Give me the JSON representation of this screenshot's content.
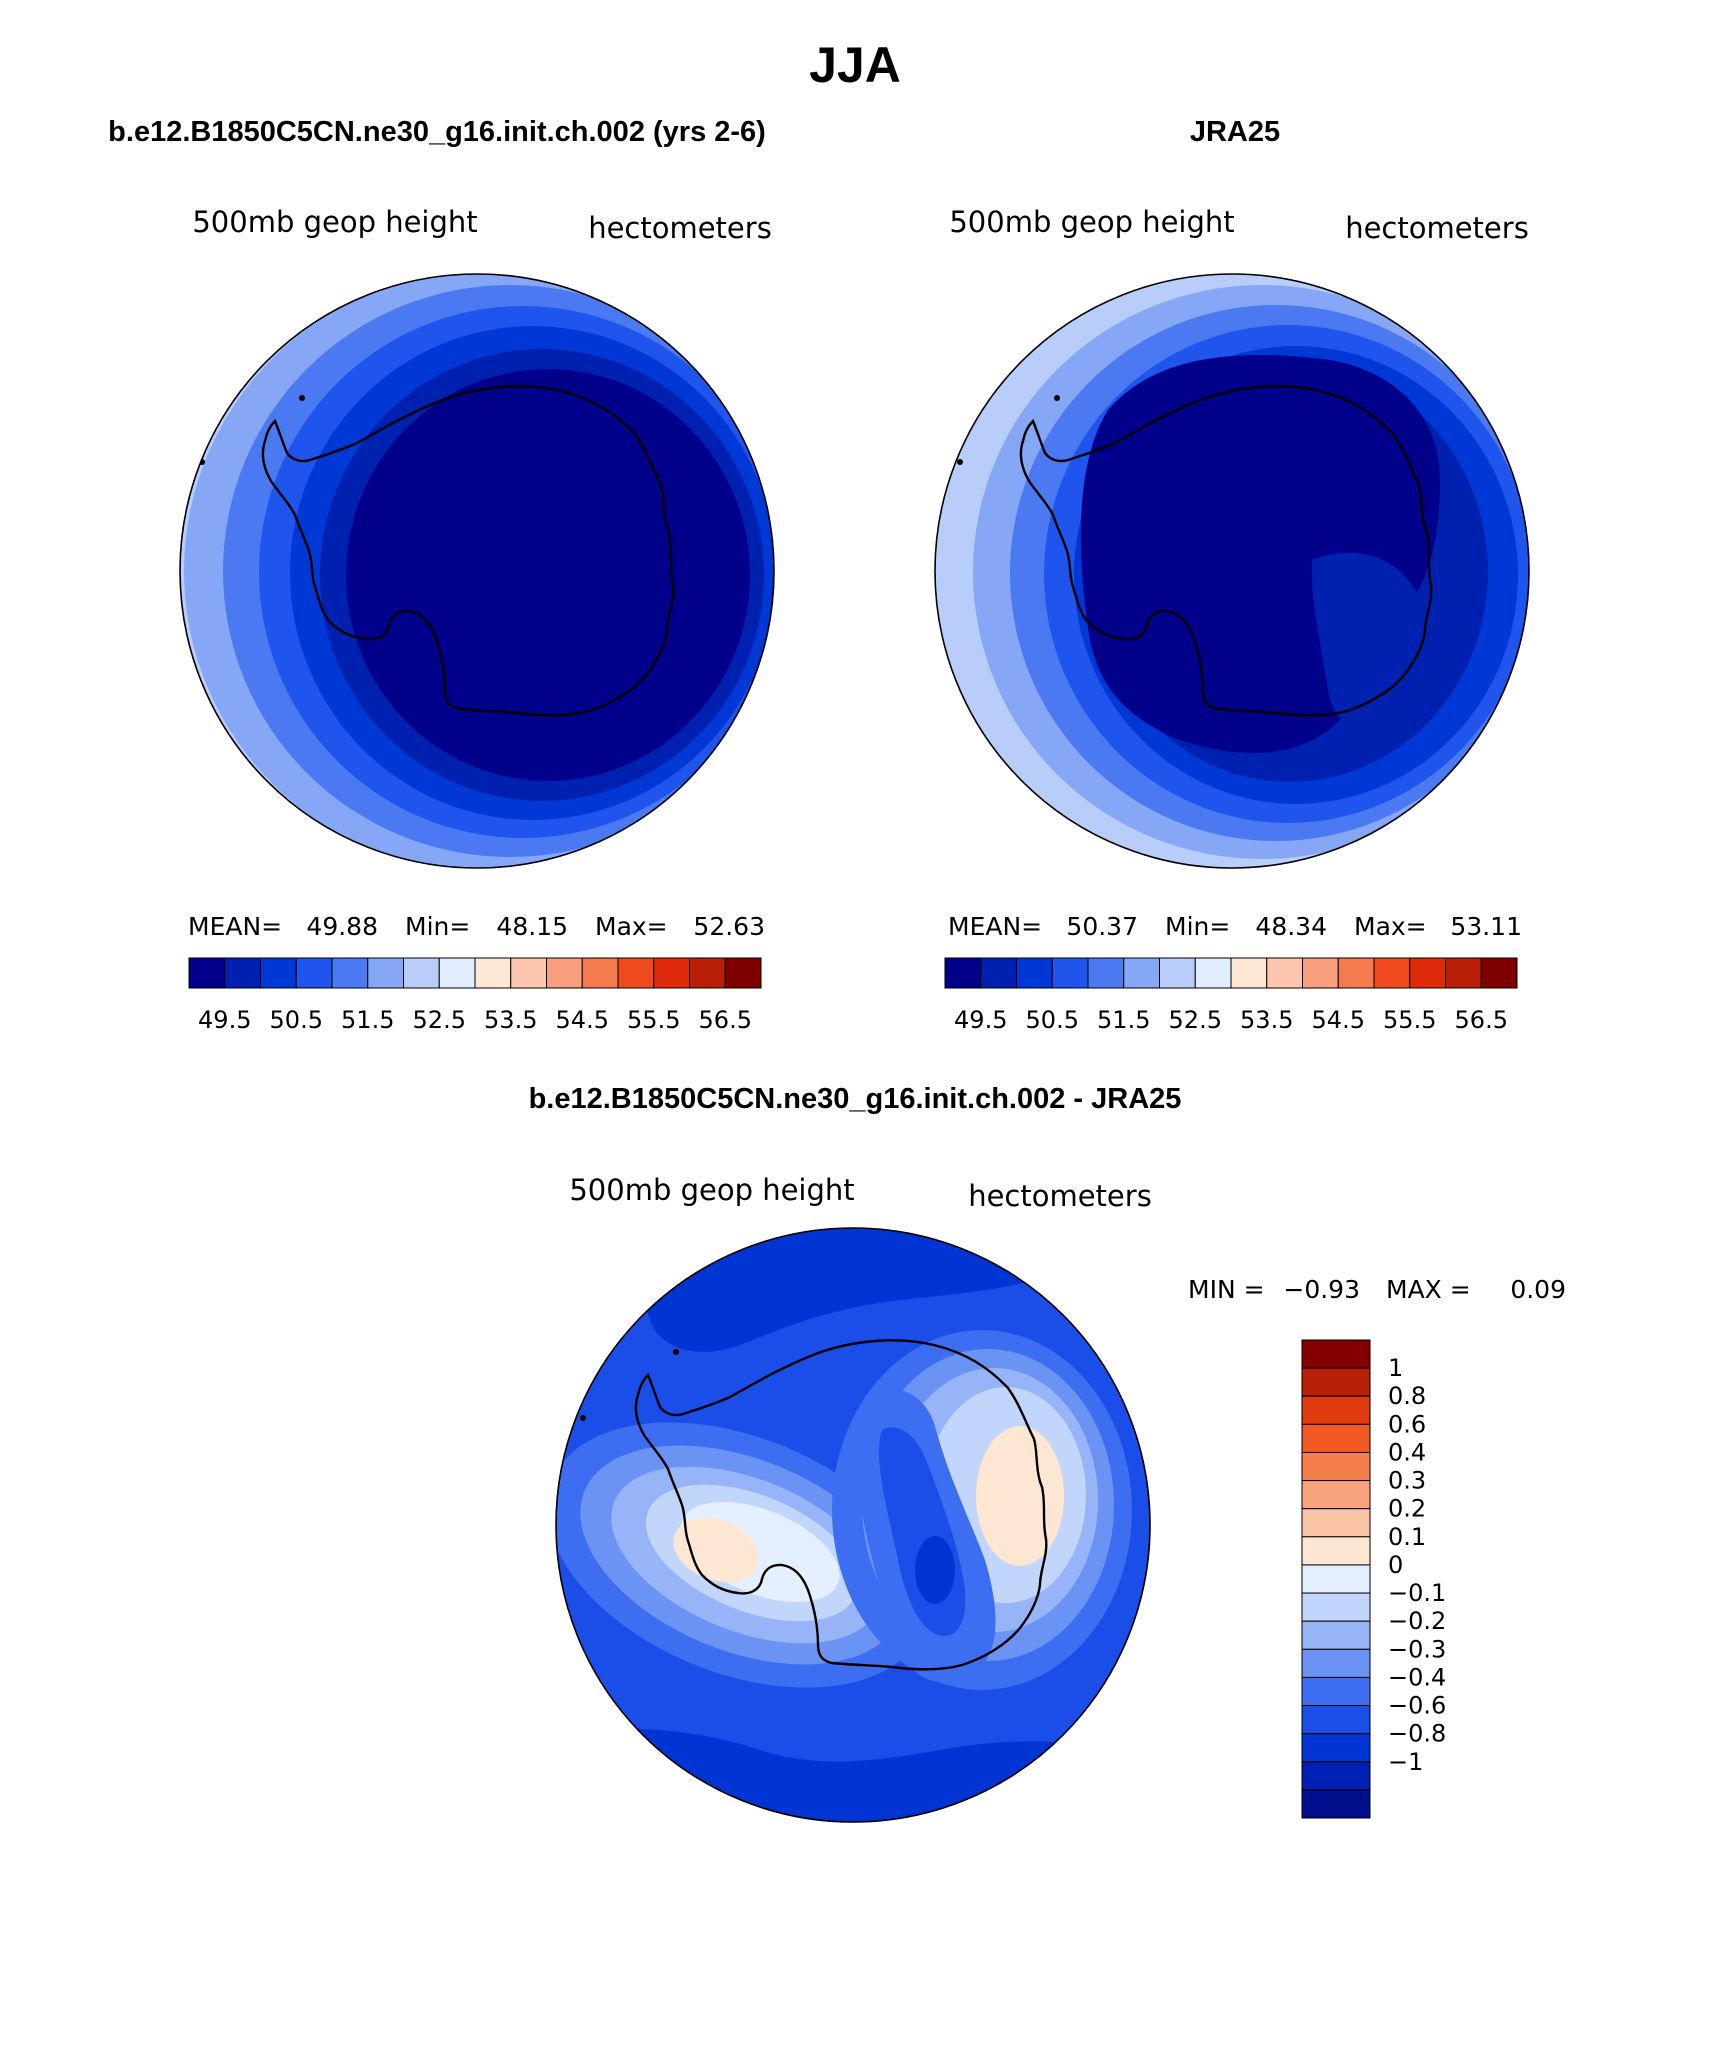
{
  "main_title": "JJA",
  "colors": {
    "abs_scale": [
      "#00008b",
      "#0020b0",
      "#0038d6",
      "#1f55ec",
      "#4a79f2",
      "#86a6f6",
      "#b8cdfa",
      "#e1edfe",
      "#fde8d6",
      "#fcc7ae",
      "#f8a07e",
      "#f57a4d",
      "#f04b1e",
      "#e02a0c",
      "#b81e08",
      "#7f0000"
    ],
    "diff_scale": [
      "#000e8c",
      "#0020b5",
      "#0035d3",
      "#1b4ee8",
      "#3d6df0",
      "#6b93f4",
      "#98b4f8",
      "#c2d6fc",
      "#e4f0ff",
      "#fde6d2",
      "#fcc4a7",
      "#f9a37d",
      "#f57f4c",
      "#f25a24",
      "#e13a0d",
      "#b82008",
      "#840000"
    ]
  },
  "panels": {
    "model": {
      "title": "b.e12.B1850C5CN.ne30_g16.init.ch.002 (yrs 2-6)",
      "left_label": "500mb geop height",
      "right_label": "hectometers",
      "stats": {
        "mean_label": "MEAN=",
        "mean": "49.88",
        "min_label": "Min=",
        "min": "48.15",
        "max_label": "Max=",
        "max": "52.63"
      }
    },
    "obs": {
      "title": "JRA25",
      "left_label": "500mb geop height",
      "right_label": "hectometers",
      "stats": {
        "mean_label": "MEAN=",
        "mean": "50.37",
        "min_label": "Min=",
        "min": "48.34",
        "max_label": "Max=",
        "max": "53.11"
      }
    },
    "diff": {
      "title": "b.e12.B1850C5CN.ne30_g16.init.ch.002 - JRA25",
      "left_label": "500mb geop height",
      "right_label": "hectometers",
      "stats": {
        "min_label": "MIN =",
        "min": "−0.93",
        "max_label": "MAX =",
        "max": "0.09"
      }
    }
  },
  "abs_colorbar_labels": [
    "49.5",
    "50.5",
    "51.5",
    "52.5",
    "53.5",
    "54.5",
    "55.5",
    "56.5"
  ],
  "diff_colorbar_labels": [
    "1",
    "0.8",
    "0.6",
    "0.4",
    "0.3",
    "0.2",
    "0.1",
    "0",
    "−0.1",
    "−0.2",
    "−0.3",
    "−0.4",
    "−0.6",
    "−0.8",
    "−1"
  ]
}
